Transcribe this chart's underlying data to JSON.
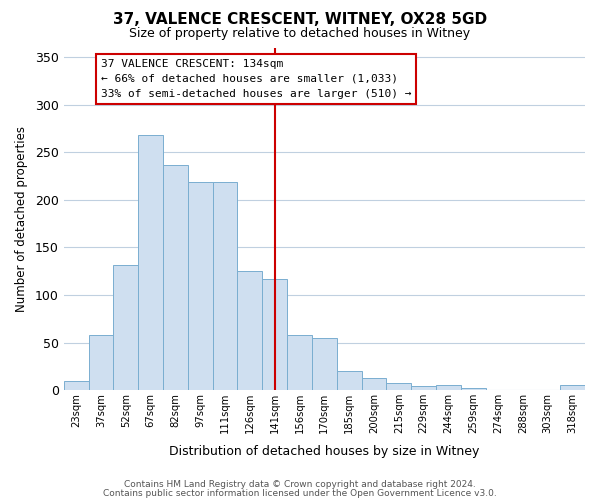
{
  "title": "37, VALENCE CRESCENT, WITNEY, OX28 5GD",
  "subtitle": "Size of property relative to detached houses in Witney",
  "xlabel": "Distribution of detached houses by size in Witney",
  "ylabel": "Number of detached properties",
  "bar_labels": [
    "23sqm",
    "37sqm",
    "52sqm",
    "67sqm",
    "82sqm",
    "97sqm",
    "111sqm",
    "126sqm",
    "141sqm",
    "156sqm",
    "170sqm",
    "185sqm",
    "200sqm",
    "215sqm",
    "229sqm",
    "244sqm",
    "259sqm",
    "274sqm",
    "288sqm",
    "303sqm",
    "318sqm"
  ],
  "bar_heights": [
    10,
    58,
    132,
    268,
    237,
    219,
    219,
    125,
    117,
    58,
    55,
    20,
    13,
    8,
    4,
    6,
    2,
    0,
    0,
    0,
    5
  ],
  "bar_color": "#cfdff0",
  "bar_edge_color": "#7aaed0",
  "vline_x_idx": 8,
  "vline_color": "#cc0000",
  "annotation_title": "37 VALENCE CRESCENT: 134sqm",
  "annotation_line1": "← 66% of detached houses are smaller (1,033)",
  "annotation_line2": "33% of semi-detached houses are larger (510) →",
  "annotation_box_color": "#ffffff",
  "annotation_box_edge": "#cc0000",
  "ylim": [
    0,
    360
  ],
  "yticks": [
    0,
    50,
    100,
    150,
    200,
    250,
    300,
    350
  ],
  "footer1": "Contains HM Land Registry data © Crown copyright and database right 2024.",
  "footer2": "Contains public sector information licensed under the Open Government Licence v3.0.",
  "bg_color": "#ffffff",
  "grid_color": "#c0d0e0"
}
